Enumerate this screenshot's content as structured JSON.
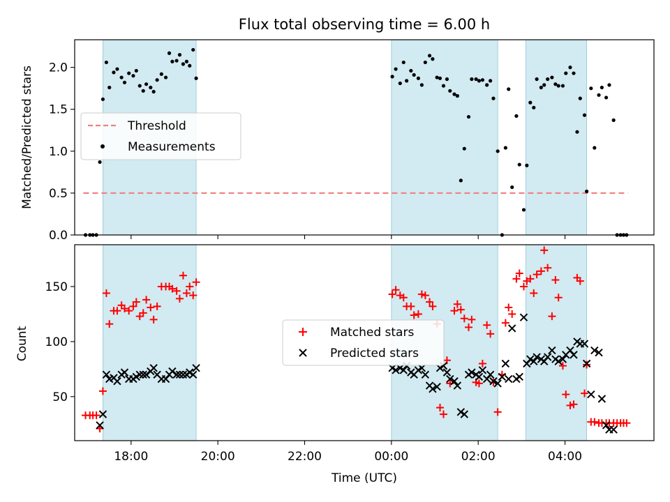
{
  "title": "Flux total observing time = 6.00 h",
  "chart_data": [
    {
      "type": "scatter",
      "ylabel": "Matched/Predicted stars",
      "xlim": [
        16.7,
        30.05
      ],
      "ylim": [
        0,
        2.33
      ],
      "y_ticks": [
        0.0,
        0.5,
        1.0,
        1.5,
        2.0
      ],
      "y_tick_labels": [
        "0.0",
        "0.5",
        "1.0",
        "1.5",
        "2.0"
      ],
      "grid": false,
      "legend_position": "center-left",
      "shaded_intervals": [
        [
          17.35,
          19.5
        ],
        [
          24.0,
          26.45
        ],
        [
          27.1,
          28.5
        ]
      ],
      "shaded_color": "#add8e6",
      "threshold": {
        "name": "Threshold",
        "y": 0.5,
        "x_range": [
          16.9,
          29.45
        ],
        "color": "#f08080"
      },
      "series": [
        {
          "name": "Measurements",
          "color": "#000000",
          "marker": "dot",
          "x": [
            16.95,
            17.05,
            17.12,
            17.2,
            17.28,
            17.35,
            17.43,
            17.5,
            17.6,
            17.68,
            17.78,
            17.85,
            17.95,
            18.05,
            18.12,
            18.2,
            18.28,
            18.35,
            18.45,
            18.52,
            18.6,
            18.7,
            18.8,
            18.88,
            18.95,
            19.05,
            19.12,
            19.2,
            19.28,
            19.35,
            19.43,
            19.5,
            24.02,
            24.1,
            24.2,
            24.28,
            24.35,
            24.45,
            24.52,
            24.62,
            24.7,
            24.78,
            24.88,
            24.95,
            25.05,
            25.12,
            25.2,
            25.28,
            25.35,
            25.45,
            25.52,
            25.6,
            25.68,
            25.78,
            25.85,
            25.95,
            26.02,
            26.1,
            26.2,
            26.28,
            26.35,
            26.45,
            26.55,
            26.63,
            26.7,
            26.78,
            26.88,
            26.95,
            27.05,
            27.12,
            27.2,
            27.28,
            27.35,
            27.45,
            27.52,
            27.6,
            27.7,
            27.78,
            27.85,
            27.95,
            28.02,
            28.12,
            28.2,
            28.28,
            28.35,
            28.45,
            28.5,
            28.6,
            28.68,
            28.78,
            28.85,
            28.95,
            29.02,
            29.12,
            29.2,
            29.28,
            29.35,
            29.42
          ],
          "y": [
            0.0,
            0.0,
            0.0,
            0.0,
            0.87,
            1.62,
            2.06,
            1.76,
            1.94,
            1.98,
            1.88,
            1.82,
            1.93,
            1.9,
            1.96,
            1.78,
            1.72,
            1.8,
            1.76,
            1.71,
            1.85,
            1.92,
            1.88,
            2.17,
            2.07,
            2.08,
            2.15,
            2.04,
            2.07,
            2.02,
            2.21,
            1.87,
            1.89,
            1.98,
            1.81,
            2.06,
            1.84,
            1.96,
            1.91,
            1.87,
            1.79,
            2.06,
            2.14,
            2.1,
            1.88,
            1.87,
            1.78,
            1.86,
            1.72,
            1.68,
            1.66,
            0.65,
            1.03,
            1.41,
            1.86,
            1.86,
            1.84,
            1.85,
            1.79,
            1.84,
            1.63,
            1.0,
            0.0,
            1.04,
            1.74,
            0.57,
            1.42,
            0.84,
            0.3,
            0.83,
            1.58,
            1.52,
            1.86,
            1.76,
            1.79,
            1.86,
            1.88,
            1.8,
            1.78,
            1.78,
            1.93,
            2.0,
            1.93,
            1.23,
            1.63,
            1.43,
            0.52,
            1.75,
            1.04,
            1.67,
            1.76,
            1.64,
            1.79,
            1.37,
            0.0,
            0.0,
            0.0,
            0.0
          ]
        }
      ]
    },
    {
      "type": "scatter",
      "xlabel": "Time (UTC)",
      "ylabel": "Count",
      "xlim": [
        16.7,
        30.05
      ],
      "ylim": [
        10,
        188
      ],
      "x_ticks": [
        18,
        20,
        22,
        24,
        26,
        28
      ],
      "x_tick_labels": [
        "18:00",
        "20:00",
        "22:00",
        "00:00",
        "02:00",
        "04:00"
      ],
      "y_ticks": [
        50,
        100,
        150
      ],
      "y_tick_labels": [
        "50",
        "100",
        "150"
      ],
      "grid": false,
      "legend_position": "center",
      "shaded_intervals": [
        [
          17.35,
          19.5
        ],
        [
          24.0,
          26.45
        ],
        [
          27.1,
          28.5
        ]
      ],
      "series": [
        {
          "name": "Matched stars",
          "color": "#ff0000",
          "marker": "plus",
          "x": [
            16.95,
            17.05,
            17.12,
            17.2,
            17.28,
            17.35,
            17.43,
            17.5,
            17.6,
            17.68,
            17.78,
            17.85,
            17.95,
            18.05,
            18.12,
            18.2,
            18.28,
            18.35,
            18.45,
            18.52,
            18.6,
            18.7,
            18.8,
            18.88,
            18.95,
            19.05,
            19.12,
            19.2,
            19.28,
            19.35,
            19.43,
            19.5,
            24.02,
            24.1,
            24.2,
            24.28,
            24.35,
            24.45,
            24.52,
            24.62,
            24.7,
            24.78,
            24.88,
            24.95,
            25.05,
            25.12,
            25.2,
            25.28,
            25.35,
            25.45,
            25.52,
            25.6,
            25.68,
            25.78,
            25.85,
            25.95,
            26.02,
            26.1,
            26.2,
            26.28,
            26.35,
            26.45,
            26.55,
            26.63,
            26.7,
            26.78,
            26.88,
            26.95,
            27.05,
            27.12,
            27.2,
            27.28,
            27.35,
            27.45,
            27.52,
            27.6,
            27.7,
            27.78,
            27.85,
            27.95,
            28.02,
            28.12,
            28.2,
            28.28,
            28.35,
            28.45,
            28.5,
            28.6,
            28.68,
            28.78,
            28.85,
            28.95,
            29.02,
            29.12,
            29.2,
            29.28,
            29.35,
            29.42
          ],
          "y": [
            33,
            33,
            33,
            33,
            21,
            55,
            144,
            116,
            128,
            128,
            133,
            130,
            128,
            132,
            136,
            123,
            126,
            138,
            131,
            120,
            132,
            150,
            150,
            150,
            148,
            146,
            139,
            160,
            144,
            150,
            142,
            154,
            143,
            147,
            142,
            140,
            132,
            132,
            124,
            125,
            143,
            142,
            136,
            132,
            116,
            40,
            34,
            83,
            62,
            128,
            134,
            129,
            121,
            113,
            120,
            63,
            62,
            80,
            115,
            107,
            63,
            36,
            70,
            117,
            131,
            125,
            157,
            162,
            150,
            155,
            157,
            144,
            161,
            164,
            183,
            167,
            123,
            156,
            140,
            78,
            52,
            42,
            43,
            158,
            155,
            53,
            79,
            27,
            27,
            26,
            26,
            26,
            26,
            26,
            26,
            26,
            26,
            26
          ],
          "note_trim": true
        },
        {
          "name": "Predicted stars",
          "color": "#000000",
          "marker": "x",
          "x": [
            17.28,
            17.35,
            17.43,
            17.5,
            17.6,
            17.68,
            17.78,
            17.85,
            17.95,
            18.05,
            18.12,
            18.2,
            18.28,
            18.35,
            18.45,
            18.52,
            18.6,
            18.7,
            18.8,
            18.88,
            18.95,
            19.05,
            19.12,
            19.2,
            19.28,
            19.35,
            19.43,
            19.5,
            24.02,
            24.1,
            24.2,
            24.28,
            24.35,
            24.45,
            24.52,
            24.62,
            24.7,
            24.78,
            24.88,
            24.95,
            25.05,
            25.12,
            25.2,
            25.28,
            25.35,
            25.45,
            25.52,
            25.6,
            25.68,
            25.78,
            25.85,
            25.95,
            26.02,
            26.1,
            26.2,
            26.28,
            26.35,
            26.45,
            26.55,
            26.63,
            26.7,
            26.78,
            26.88,
            26.95,
            27.05,
            27.12,
            27.2,
            27.28,
            27.35,
            27.45,
            27.52,
            27.6,
            27.7,
            27.78,
            27.85,
            27.95,
            28.02,
            28.12,
            28.2,
            28.28,
            28.35,
            28.45,
            28.5,
            28.6,
            28.68,
            28.78,
            28.85,
            28.95,
            29.02,
            29.12
          ],
          "y": [
            24,
            34,
            70,
            66,
            67,
            64,
            70,
            72,
            66,
            66,
            68,
            70,
            70,
            70,
            73,
            76,
            70,
            66,
            66,
            70,
            73,
            70,
            70,
            70,
            70,
            72,
            70,
            76,
            76,
            74,
            76,
            74,
            78,
            72,
            70,
            74,
            76,
            70,
            60,
            57,
            59,
            76,
            78,
            72,
            66,
            64,
            60,
            36,
            34,
            70,
            72,
            70,
            68,
            74,
            66,
            70,
            64,
            62,
            68,
            80,
            66,
            112,
            66,
            68,
            122,
            80,
            84,
            82,
            86,
            84,
            82,
            86,
            92,
            84,
            82,
            84,
            88,
            92,
            88,
            100,
            98,
            98,
            80,
            52,
            92,
            90,
            48,
            24,
            20,
            20
          ]
        }
      ]
    }
  ]
}
